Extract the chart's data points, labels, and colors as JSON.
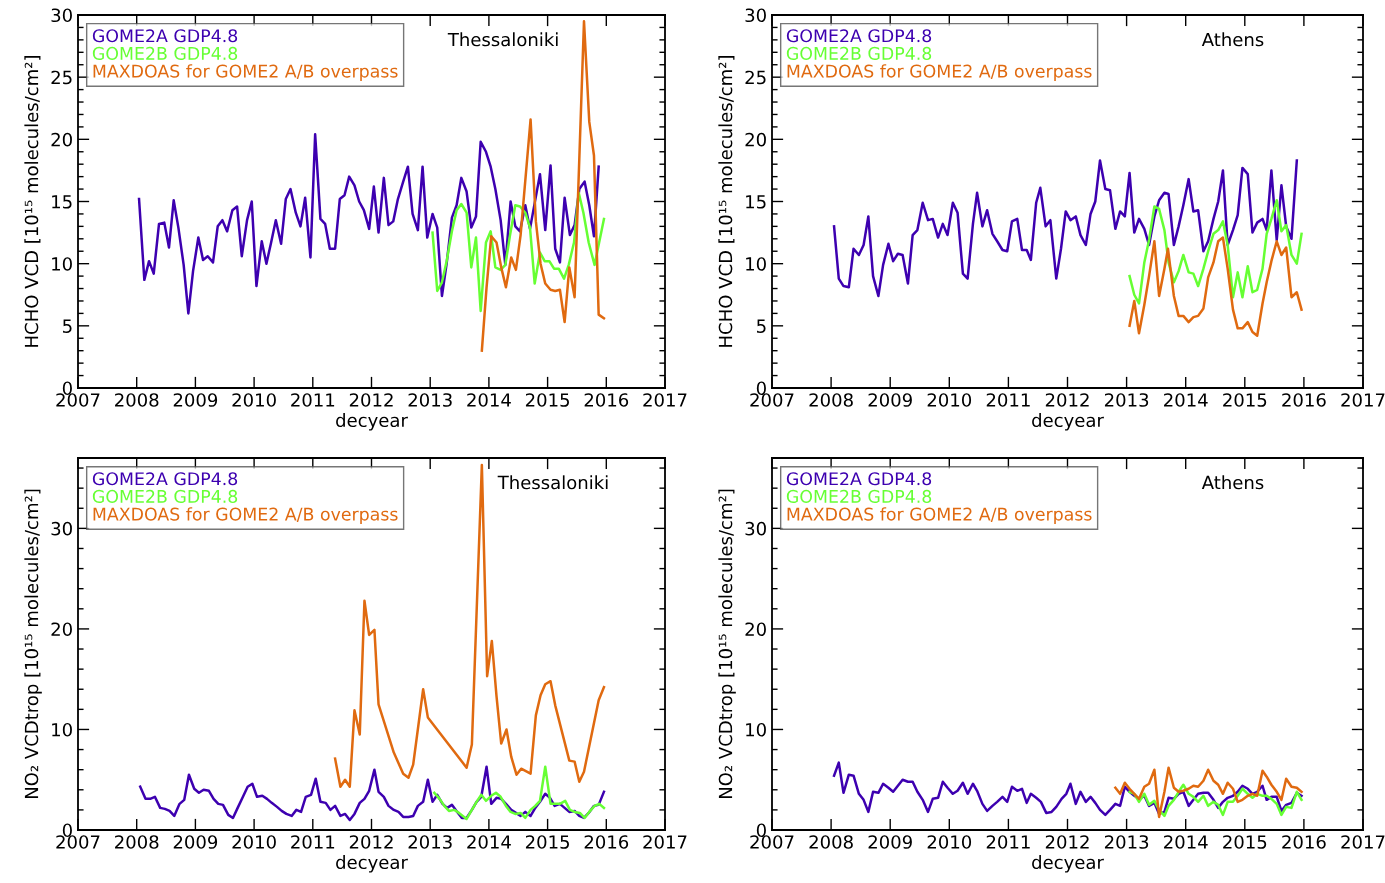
{
  "chart_data": [
    {
      "type": "line",
      "title": "Thessaloniki",
      "xlabel": "decyear",
      "ylabel": "HCHO VCD [10¹⁵ molecules/cm²]",
      "xlim": [
        2007,
        2017
      ],
      "xticks": [
        2007,
        2008,
        2009,
        2010,
        2011,
        2012,
        2013,
        2014,
        2015,
        2016,
        2017
      ],
      "ylim": [
        0,
        30
      ],
      "yticks": [
        0,
        5,
        10,
        15,
        20,
        25,
        30
      ],
      "legend": "top left",
      "grid": false,
      "series": [
        {
          "name": "GOME2A GDP4.8",
          "color": "#3d00b0",
          "x": [
            2008.04,
            2008.13,
            2008.21,
            2008.29,
            2008.38,
            2008.47,
            2008.55,
            2008.63,
            2008.71,
            2008.8,
            2008.88,
            2008.96,
            2009.05,
            2009.13,
            2009.21,
            2009.3,
            2009.38,
            2009.46,
            2009.54,
            2009.63,
            2009.71,
            2009.79,
            2009.88,
            2009.96,
            2010.04,
            2010.13,
            2010.21,
            2010.29,
            2010.37,
            2010.46,
            2010.54,
            2010.62,
            2010.71,
            2010.79,
            2010.87,
            2010.96,
            2011.04,
            2011.13,
            2011.21,
            2011.29,
            2011.38,
            2011.46,
            2011.54,
            2011.62,
            2011.71,
            2011.79,
            2011.87,
            2011.96,
            2012.04,
            2012.12,
            2012.21,
            2012.29,
            2012.37,
            2012.45,
            2012.54,
            2012.62,
            2012.7,
            2012.79,
            2012.87,
            2012.95,
            2013.04,
            2013.12,
            2013.2,
            2013.28,
            2013.37,
            2013.45,
            2013.53,
            2013.62,
            2013.7,
            2013.78,
            2013.86,
            2013.95,
            2014.03,
            2014.11,
            2014.2,
            2014.28,
            2014.37,
            2014.45,
            2014.53,
            2014.62,
            2014.7,
            2014.87,
            2014.96,
            2015.05,
            2015.13,
            2015.21,
            2015.29,
            2015.38,
            2015.46,
            2015.54,
            2015.63,
            2015.71,
            2015.79,
            2015.87
          ],
          "values": [
            15.2,
            8.7,
            10.2,
            9.2,
            13.2,
            13.3,
            11.3,
            15.1,
            12.9,
            9.9,
            6.0,
            9.4,
            12.1,
            10.3,
            10.6,
            10.1,
            13.0,
            13.5,
            12.6,
            14.3,
            14.6,
            10.6,
            13.5,
            15.0,
            8.2,
            11.8,
            10.0,
            11.7,
            13.5,
            11.6,
            15.2,
            16.0,
            14.1,
            13.0,
            15.3,
            10.5,
            20.4,
            13.6,
            13.2,
            11.2,
            11.2,
            15.2,
            15.5,
            17.0,
            16.3,
            15.0,
            14.3,
            12.8,
            16.2,
            12.5,
            16.9,
            13.1,
            13.4,
            15.2,
            16.6,
            17.8,
            14.0,
            12.7,
            17.8,
            12.1,
            14.0,
            12.9,
            7.4,
            10.0,
            13.7,
            14.7,
            16.9,
            15.8,
            12.9,
            13.8,
            19.8,
            19.0,
            17.8,
            16.0,
            13.5,
            9.9,
            15.0,
            13.0,
            12.6,
            14.7,
            12.8,
            17.2,
            12.7,
            17.9,
            11.2,
            10.1,
            15.3,
            12.3,
            13.1,
            16.0,
            16.6,
            14.7,
            12.2,
            17.8
          ]
        },
        {
          "name": "GOME2B GDP4.8",
          "color": "#66ff33",
          "x": [
            2013.04,
            2013.12,
            2013.2,
            2013.28,
            2013.37,
            2013.45,
            2013.53,
            2013.62,
            2013.7,
            2013.78,
            2013.86,
            2013.95,
            2014.03,
            2014.11,
            2014.2,
            2014.28,
            2014.36,
            2014.45,
            2014.53,
            2014.62,
            2014.7,
            2014.78,
            2014.87,
            2014.95,
            2015.03,
            2015.11,
            2015.19,
            2015.28,
            2015.36,
            2015.45,
            2015.53,
            2015.61,
            2015.7,
            2015.8,
            2015.96
          ],
          "values": [
            12.5,
            7.8,
            8.5,
            10.2,
            12.6,
            14.3,
            14.8,
            14.1,
            9.7,
            12.1,
            6.2,
            11.7,
            12.6,
            9.7,
            9.5,
            9.9,
            12.3,
            14.7,
            14.6,
            14.1,
            12.9,
            8.4,
            10.9,
            10.2,
            10.2,
            9.6,
            9.6,
            8.8,
            9.9,
            11.7,
            15.7,
            14.1,
            11.7,
            9.9,
            13.6
          ]
        },
        {
          "name": "MAXDOAS for GOME2 A/B overpass",
          "color": "#e06a10",
          "x": [
            2013.88,
            2013.96,
            2014.04,
            2014.13,
            2014.21,
            2014.29,
            2014.38,
            2014.46,
            2014.54,
            2014.71,
            2014.8,
            2014.88,
            2014.96,
            2015.05,
            2015.13,
            2015.21,
            2015.29,
            2015.37,
            2015.46,
            2015.62,
            2015.71,
            2015.79,
            2015.87,
            2015.96
          ],
          "values": [
            3.0,
            8.1,
            12.2,
            11.7,
            9.7,
            8.1,
            10.5,
            9.5,
            12.3,
            21.6,
            13.4,
            10.0,
            8.4,
            7.9,
            7.8,
            7.9,
            5.3,
            9.7,
            7.3,
            29.5,
            21.4,
            18.7,
            5.9,
            5.6
          ]
        }
      ]
    },
    {
      "type": "line",
      "title": "Athens",
      "xlabel": "decyear",
      "ylabel": "HCHO VCD [10¹⁵ molecules/cm²]",
      "xlim": [
        2007,
        2017
      ],
      "xticks": [
        2007,
        2008,
        2009,
        2010,
        2011,
        2012,
        2013,
        2014,
        2015,
        2016,
        2017
      ],
      "ylim": [
        0,
        30
      ],
      "yticks": [
        0,
        5,
        10,
        15,
        20,
        25,
        30
      ],
      "legend": "top left",
      "grid": false,
      "series": [
        {
          "name": "GOME2A GDP4.8",
          "color": "#3d00b0",
          "x": [
            2008.05,
            2008.13,
            2008.21,
            2008.3,
            2008.38,
            2008.47,
            2008.55,
            2008.63,
            2008.71,
            2008.8,
            2008.88,
            2008.97,
            2009.05,
            2009.13,
            2009.21,
            2009.3,
            2009.38,
            2009.46,
            2009.55,
            2009.64,
            2009.72,
            2009.81,
            2009.89,
            2009.97,
            2010.06,
            2010.14,
            2010.23,
            2010.31,
            2010.4,
            2010.47,
            2010.56,
            2010.64,
            2010.73,
            2010.81,
            2010.9,
            2010.98,
            2011.06,
            2011.15,
            2011.23,
            2011.31,
            2011.38,
            2011.47,
            2011.54,
            2011.63,
            2011.71,
            2011.81,
            2011.89,
            2011.97,
            2012.05,
            2012.14,
            2012.22,
            2012.31,
            2012.39,
            2012.47,
            2012.55,
            2012.64,
            2012.72,
            2012.81,
            2012.89,
            2012.97,
            2013.05,
            2013.13,
            2013.21,
            2013.3,
            2013.38,
            2013.47,
            2013.55,
            2013.64,
            2013.71,
            2013.8,
            2013.88,
            2013.96,
            2014.05,
            2014.13,
            2014.21,
            2014.3,
            2014.38,
            2014.47,
            2014.55,
            2014.63,
            2014.71,
            2014.8,
            2014.88,
            2014.96,
            2015.05,
            2015.13,
            2015.21,
            2015.3,
            2015.37,
            2015.45,
            2015.54,
            2015.62,
            2015.7,
            2015.79,
            2015.88
          ],
          "values": [
            13.0,
            8.8,
            8.2,
            8.1,
            11.2,
            10.7,
            11.5,
            13.8,
            9.0,
            7.4,
            9.9,
            11.6,
            10.2,
            10.8,
            10.7,
            8.4,
            12.3,
            12.7,
            14.9,
            13.5,
            13.6,
            12.1,
            13.2,
            12.3,
            14.9,
            14.1,
            9.2,
            8.8,
            13.2,
            15.7,
            13.0,
            14.3,
            12.4,
            11.8,
            11.1,
            11.0,
            13.4,
            13.6,
            11.1,
            11.1,
            10.3,
            14.9,
            16.1,
            13.0,
            13.5,
            8.8,
            11.2,
            14.2,
            13.5,
            13.8,
            12.3,
            11.5,
            14.0,
            15.0,
            18.3,
            16.0,
            15.9,
            12.8,
            14.2,
            13.8,
            17.3,
            12.5,
            13.6,
            12.8,
            11.5,
            13.8,
            15.1,
            15.7,
            15.6,
            11.5,
            13.0,
            14.7,
            16.8,
            14.2,
            14.3,
            11.0,
            11.8,
            13.6,
            15.0,
            17.5,
            11.5,
            12.7,
            13.9,
            17.7,
            17.2,
            12.5,
            13.3,
            13.6,
            12.7,
            17.5,
            11.9,
            16.3,
            13.0,
            12.0,
            18.3
          ]
        },
        {
          "name": "GOME2B GDP4.8",
          "color": "#66ff33",
          "x": [
            2013.05,
            2013.13,
            2013.21,
            2013.3,
            2013.38,
            2013.47,
            2013.55,
            2013.64,
            2013.71,
            2013.8,
            2013.88,
            2013.96,
            2014.05,
            2014.13,
            2014.21,
            2014.3,
            2014.38,
            2014.47,
            2014.55,
            2014.63,
            2014.71,
            2014.8,
            2014.88,
            2014.96,
            2015.05,
            2015.13,
            2015.21,
            2015.3,
            2015.37,
            2015.45,
            2015.54,
            2015.62,
            2015.7,
            2015.79,
            2015.88,
            2015.96
          ],
          "values": [
            9.0,
            7.5,
            6.8,
            10.1,
            11.9,
            14.6,
            14.4,
            12.7,
            10.1,
            8.5,
            9.4,
            10.7,
            9.3,
            9.2,
            8.2,
            9.6,
            11.0,
            12.4,
            12.7,
            13.4,
            11.5,
            7.3,
            9.3,
            7.3,
            9.8,
            7.7,
            7.9,
            9.6,
            12.4,
            13.6,
            15.1,
            12.6,
            13.1,
            10.7,
            10.0,
            12.4
          ]
        },
        {
          "name": "MAXDOAS for GOME2 A/B overpass",
          "color": "#e06a10",
          "x": [
            2013.05,
            2013.13,
            2013.21,
            2013.3,
            2013.38,
            2013.47,
            2013.55,
            2013.64,
            2013.7,
            2013.8,
            2013.88,
            2013.96,
            2014.05,
            2014.13,
            2014.21,
            2014.3,
            2014.38,
            2014.47,
            2014.55,
            2014.63,
            2014.71,
            2014.8,
            2014.88,
            2014.96,
            2015.05,
            2015.13,
            2015.21,
            2015.3,
            2015.37,
            2015.45,
            2015.54,
            2015.62,
            2015.7,
            2015.79,
            2015.88,
            2015.96
          ],
          "values": [
            5.0,
            7.0,
            4.4,
            6.7,
            9.0,
            11.8,
            7.4,
            9.6,
            11.2,
            7.4,
            5.8,
            5.8,
            5.3,
            5.7,
            5.8,
            6.4,
            8.9,
            10.1,
            11.8,
            12.1,
            9.6,
            6.3,
            4.8,
            4.8,
            5.3,
            4.5,
            4.2,
            6.8,
            8.5,
            10.2,
            11.8,
            10.7,
            11.3,
            7.3,
            7.7,
            6.3
          ]
        }
      ]
    },
    {
      "type": "line",
      "title": "Thessaloniki",
      "xlabel": "decyear",
      "ylabel": "NO₂ VCDtrop [10¹⁵ molecules/cm²]",
      "xlim": [
        2007,
        2017
      ],
      "xticks": [
        2007,
        2008,
        2009,
        2010,
        2011,
        2012,
        2013,
        2014,
        2015,
        2016,
        2017
      ],
      "ylim": [
        0,
        37
      ],
      "yticks": [
        0,
        10,
        20,
        30
      ],
      "legend": "top left",
      "grid": false,
      "series": [
        {
          "name": "GOME2A GDP4.8",
          "color": "#3d00b0",
          "x": [
            2008.06,
            2008.15,
            2008.23,
            2008.31,
            2008.4,
            2008.48,
            2008.56,
            2008.64,
            2008.73,
            2008.81,
            2008.89,
            2008.98,
            2009.06,
            2009.14,
            2009.23,
            2009.31,
            2009.39,
            2009.47,
            2009.56,
            2009.64,
            2009.72,
            2009.81,
            2009.89,
            2009.97,
            2010.05,
            2010.14,
            2010.22,
            2010.3,
            2010.39,
            2010.47,
            2010.55,
            2010.64,
            2010.72,
            2010.8,
            2010.88,
            2010.97,
            2011.05,
            2011.13,
            2011.22,
            2011.3,
            2011.38,
            2011.47,
            2011.55,
            2011.63,
            2011.71,
            2011.8,
            2011.88,
            2011.96,
            2012.05,
            2012.12,
            2012.21,
            2012.29,
            2012.38,
            2012.46,
            2012.54,
            2012.63,
            2012.71,
            2012.79,
            2012.88,
            2012.96,
            2013.04,
            2013.12,
            2013.21,
            2013.29,
            2013.37,
            2013.46,
            2013.54,
            2013.62,
            2013.71,
            2013.79,
            2013.87,
            2013.96,
            2014.04,
            2014.13,
            2014.21,
            2014.29,
            2014.38,
            2014.46,
            2014.54,
            2014.62,
            2014.71,
            2014.79,
            2014.87,
            2014.96,
            2015.04,
            2015.12,
            2015.21,
            2015.29,
            2015.37,
            2015.46,
            2015.54,
            2015.62,
            2015.7,
            2015.79,
            2015.87,
            2015.96
          ],
          "values": [
            4.3,
            3.1,
            3.1,
            3.3,
            2.2,
            2.1,
            1.9,
            1.4,
            2.6,
            3.0,
            5.5,
            4.1,
            3.7,
            4.0,
            3.9,
            3.1,
            2.6,
            2.5,
            1.5,
            1.2,
            2.2,
            3.3,
            4.3,
            4.6,
            3.3,
            3.4,
            3.1,
            2.7,
            2.3,
            1.9,
            1.6,
            1.4,
            2.0,
            1.8,
            3.3,
            3.5,
            5.1,
            2.8,
            2.7,
            2.0,
            2.4,
            1.4,
            1.6,
            1.0,
            1.6,
            2.7,
            3.1,
            3.9,
            6.0,
            3.8,
            3.3,
            2.4,
            2.0,
            1.8,
            1.3,
            1.3,
            1.4,
            2.4,
            2.8,
            5.0,
            2.8,
            3.5,
            2.6,
            2.2,
            2.5,
            1.8,
            1.2,
            1.2,
            2.0,
            2.8,
            3.3,
            6.3,
            2.6,
            3.2,
            3.1,
            2.6,
            2.0,
            1.7,
            1.4,
            1.8,
            1.4,
            2.2,
            2.8,
            3.6,
            3.2,
            2.4,
            2.6,
            2.2,
            1.8,
            1.9,
            1.4,
            1.2,
            1.7,
            2.4,
            2.5,
            3.8
          ]
        },
        {
          "name": "GOME2B GDP4.8",
          "color": "#66ff33",
          "x": [
            2013.07,
            2013.16,
            2013.24,
            2013.32,
            2013.41,
            2013.49,
            2013.62,
            2013.71,
            2013.79,
            2013.87,
            2013.95,
            2014.04,
            2014.12,
            2014.2,
            2014.29,
            2014.37,
            2014.45,
            2014.54,
            2014.62,
            2014.71,
            2014.79,
            2014.87,
            2014.96,
            2015.05,
            2015.13,
            2015.21,
            2015.3,
            2015.38,
            2015.46,
            2015.55,
            2015.63,
            2015.71,
            2015.8,
            2015.88,
            2015.96
          ],
          "values": [
            3.7,
            3.1,
            2.4,
            1.9,
            2.0,
            1.7,
            1.1,
            2.0,
            2.8,
            3.5,
            2.9,
            3.4,
            3.7,
            3.3,
            2.4,
            1.8,
            1.6,
            1.7,
            1.2,
            2.0,
            2.4,
            2.9,
            6.3,
            2.6,
            2.6,
            2.6,
            2.9,
            2.0,
            1.8,
            1.7,
            1.2,
            1.8,
            2.4,
            2.6,
            2.2
          ]
        },
        {
          "name": "MAXDOAS for GOME2 A/B overpass",
          "color": "#e06a10",
          "x": [
            2011.38,
            2011.47,
            2011.55,
            2011.63,
            2011.71,
            2011.8,
            2011.88,
            2011.96,
            2012.05,
            2012.12,
            2012.38,
            2012.54,
            2012.63,
            2012.71,
            2012.88,
            2012.96,
            2013.62,
            2013.71,
            2013.88,
            2013.97,
            2014.05,
            2014.13,
            2014.21,
            2014.3,
            2014.38,
            2014.47,
            2014.55,
            2014.71,
            2014.8,
            2014.88,
            2014.96,
            2015.05,
            2015.13,
            2015.37,
            2015.46,
            2015.54,
            2015.62,
            2015.87,
            2015.96
          ],
          "values": [
            7.1,
            4.3,
            5.0,
            4.3,
            11.9,
            9.5,
            22.8,
            19.4,
            19.9,
            12.5,
            7.7,
            5.6,
            5.2,
            6.5,
            14.0,
            11.2,
            6.2,
            8.5,
            36.3,
            15.3,
            18.8,
            13.3,
            8.6,
            10.0,
            7.3,
            5.5,
            6.1,
            5.6,
            11.4,
            13.4,
            14.5,
            14.8,
            12.4,
            6.9,
            6.8,
            4.8,
            5.8,
            12.9,
            14.2
          ]
        }
      ]
    },
    {
      "type": "line",
      "title": "Athens",
      "xlabel": "decyear",
      "ylabel": "NO₂ VCDtrop [10¹⁵ molecules/cm²]",
      "xlim": [
        2007,
        2017
      ],
      "xticks": [
        2007,
        2008,
        2009,
        2010,
        2011,
        2012,
        2013,
        2014,
        2015,
        2016,
        2017
      ],
      "ylim": [
        0,
        37
      ],
      "yticks": [
        0,
        10,
        20,
        30
      ],
      "legend": "top left",
      "grid": false,
      "series": [
        {
          "name": "GOME2A GDP4.8",
          "color": "#3d00b0",
          "x": [
            2008.05,
            2008.13,
            2008.21,
            2008.3,
            2008.38,
            2008.47,
            2008.55,
            2008.63,
            2008.71,
            2008.8,
            2008.88,
            2008.97,
            2009.05,
            2009.13,
            2009.21,
            2009.3,
            2009.38,
            2009.46,
            2009.55,
            2009.64,
            2009.72,
            2009.81,
            2009.89,
            2009.97,
            2010.06,
            2010.14,
            2010.23,
            2010.31,
            2010.4,
            2010.47,
            2010.56,
            2010.64,
            2010.73,
            2010.81,
            2010.9,
            2010.98,
            2011.06,
            2011.15,
            2011.23,
            2011.31,
            2011.38,
            2011.47,
            2011.55,
            2011.64,
            2011.73,
            2011.81,
            2011.9,
            2011.98,
            2012.05,
            2012.14,
            2012.22,
            2012.31,
            2012.39,
            2012.47,
            2012.55,
            2012.64,
            2012.72,
            2012.81,
            2012.89,
            2012.97,
            2013.05,
            2013.13,
            2013.21,
            2013.3,
            2013.38,
            2013.47,
            2013.55,
            2013.64,
            2013.71,
            2013.8,
            2013.88,
            2013.96,
            2014.05,
            2014.13,
            2014.21,
            2014.3,
            2014.38,
            2014.47,
            2014.55,
            2014.63,
            2014.71,
            2014.8,
            2014.88,
            2014.96,
            2015.05,
            2015.13,
            2015.21,
            2015.3,
            2015.37,
            2015.45,
            2015.54,
            2015.62,
            2015.7,
            2015.79,
            2015.88,
            2015.96
          ],
          "values": [
            5.4,
            6.7,
            3.7,
            5.5,
            5.4,
            3.6,
            3.0,
            1.8,
            3.8,
            3.7,
            4.6,
            4.2,
            3.8,
            4.4,
            5.0,
            4.8,
            4.8,
            3.8,
            3.0,
            1.8,
            3.1,
            3.2,
            4.8,
            4.2,
            3.6,
            3.9,
            4.7,
            3.6,
            4.6,
            3.9,
            2.6,
            1.9,
            2.4,
            2.8,
            3.3,
            2.8,
            4.3,
            3.9,
            4.1,
            2.7,
            3.6,
            3.2,
            2.8,
            1.7,
            1.8,
            2.3,
            3.1,
            3.6,
            4.6,
            2.6,
            3.8,
            2.8,
            3.3,
            2.7,
            2.0,
            1.5,
            2.0,
            2.6,
            2.4,
            4.3,
            3.8,
            3.4,
            3.1,
            3.4,
            2.4,
            2.7,
            1.6,
            1.8,
            3.2,
            3.1,
            3.6,
            3.8,
            2.4,
            3.0,
            3.6,
            3.7,
            3.7,
            3.0,
            2.2,
            2.8,
            3.2,
            3.4,
            3.8,
            4.4,
            4.1,
            3.6,
            3.8,
            4.4,
            3.0,
            3.3,
            3.3,
            1.9,
            2.5,
            2.7,
            3.7,
            3.4
          ]
        },
        {
          "name": "GOME2B GDP4.8",
          "color": "#66ff33",
          "x": [
            2013.05,
            2013.13,
            2013.21,
            2013.3,
            2013.38,
            2013.47,
            2013.55,
            2013.64,
            2013.71,
            2013.8,
            2013.88,
            2013.96,
            2014.05,
            2014.13,
            2014.21,
            2014.3,
            2014.38,
            2014.47,
            2014.55,
            2014.63,
            2014.71,
            2014.8,
            2014.88,
            2014.96,
            2015.05,
            2015.13,
            2015.21,
            2015.3,
            2015.37,
            2015.45,
            2015.54,
            2015.62,
            2015.7,
            2015.79,
            2015.88,
            2015.96
          ],
          "values": [
            3.8,
            3.6,
            2.8,
            3.6,
            2.5,
            2.9,
            2.0,
            1.4,
            2.4,
            3.0,
            3.8,
            4.5,
            3.6,
            3.3,
            2.8,
            3.4,
            2.4,
            2.8,
            2.5,
            1.5,
            2.8,
            2.8,
            3.4,
            4.1,
            3.6,
            3.2,
            3.6,
            3.4,
            3.4,
            3.1,
            2.6,
            1.5,
            2.3,
            2.2,
            3.8,
            3.0
          ]
        },
        {
          "name": "MAXDOAS for GOME2 A/B overpass",
          "color": "#e06a10",
          "x": [
            2012.81,
            2012.89,
            2012.97,
            2013.05,
            2013.13,
            2013.21,
            2013.3,
            2013.38,
            2013.47,
            2013.55,
            2013.64,
            2013.71,
            2013.8,
            2013.88,
            2013.96,
            2014.05,
            2014.13,
            2014.21,
            2014.3,
            2014.38,
            2014.47,
            2014.55,
            2014.63,
            2014.71,
            2014.8,
            2014.88,
            2014.96,
            2015.05,
            2015.13,
            2015.21,
            2015.3,
            2015.37,
            2015.45,
            2015.54,
            2015.62,
            2015.7,
            2015.79,
            2015.88,
            2015.96
          ],
          "values": [
            4.2,
            3.6,
            4.7,
            4.1,
            3.6,
            3.1,
            4.3,
            4.6,
            6.0,
            1.3,
            3.8,
            6.2,
            4.2,
            3.8,
            3.9,
            4.1,
            4.4,
            4.3,
            4.9,
            6.0,
            4.9,
            4.5,
            3.6,
            4.7,
            4.1,
            2.8,
            3.0,
            3.4,
            3.6,
            3.4,
            5.9,
            5.3,
            4.5,
            3.8,
            3.0,
            5.1,
            4.3,
            4.2,
            3.8
          ]
        }
      ]
    }
  ]
}
